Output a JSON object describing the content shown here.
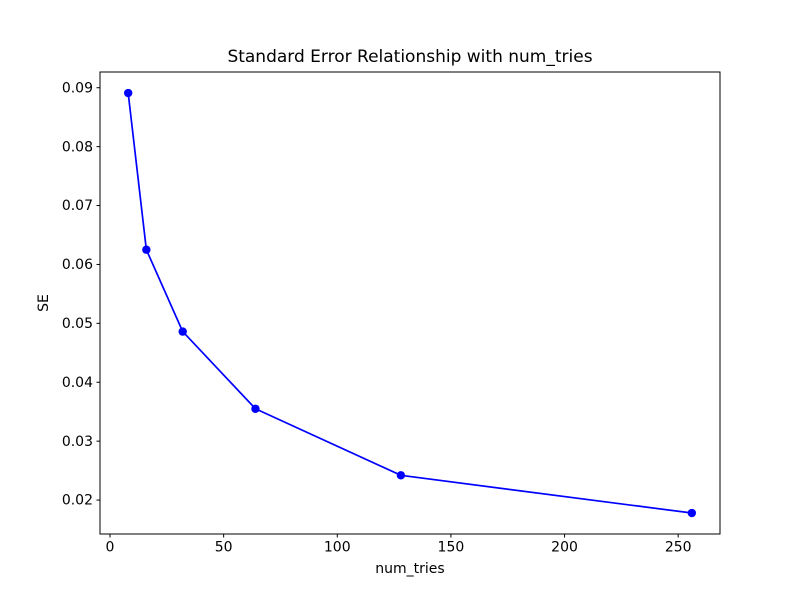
{
  "figure": {
    "background": "#ffffff"
  },
  "chart_data": {
    "type": "line",
    "title": "Standard Error Relationship with num_tries",
    "xlabel": "num_tries",
    "ylabel": "SE",
    "x": [
      8,
      16,
      32,
      64,
      128,
      256
    ],
    "y": [
      0.0891,
      0.0625,
      0.0486,
      0.0355,
      0.0242,
      0.0178
    ],
    "series_name": "SE",
    "xticks": [
      0,
      50,
      100,
      150,
      200,
      250
    ],
    "xtick_labels": [
      "0",
      "50",
      "100",
      "150",
      "200",
      "250"
    ],
    "yticks": [
      0.02,
      0.03,
      0.04,
      0.05,
      0.06,
      0.07,
      0.08,
      0.09
    ],
    "ytick_labels": [
      "0.02",
      "0.03",
      "0.04",
      "0.05",
      "0.06",
      "0.07",
      "0.08",
      "0.09"
    ],
    "xlim": [
      -4.4,
      268.4
    ],
    "ylim": [
      0.01424,
      0.09267
    ],
    "grid": false,
    "legend": "none",
    "line_color": "#0000ff",
    "marker": "o",
    "marker_color": "#0000ff",
    "axis_color": "#000000",
    "text_color": "#000000"
  }
}
